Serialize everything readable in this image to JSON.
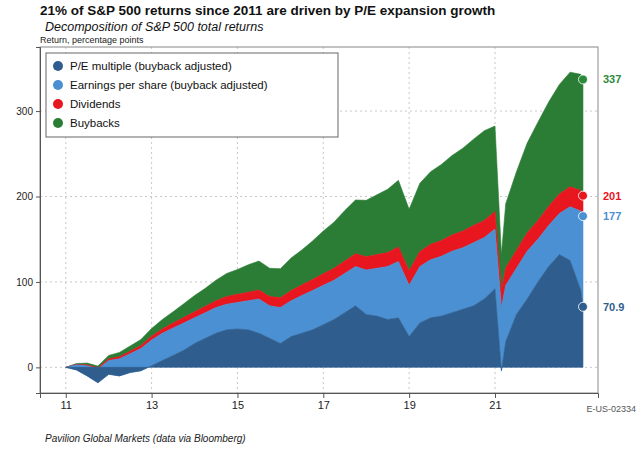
{
  "chart_data": {
    "type": "area",
    "title": "21% of S&P 500 returns since 2011 are driven by P/E expansion growth",
    "subtitle": "Decomposition of S&P 500 total returns",
    "y_label": "Return, percentage points",
    "source": "Pavilion Global Markets (data via Bloomberg)",
    "chart_id": "E-US-02334",
    "stacked": true,
    "grid": true,
    "legend": "top-left",
    "xlim": [
      10.4,
      23.4
    ],
    "xticks": [
      11,
      13,
      15,
      17,
      19,
      21
    ],
    "ylim": [
      -30,
      375
    ],
    "yticks": [
      0,
      100,
      200,
      300
    ],
    "x": [
      11,
      11.25,
      11.5,
      11.75,
      12,
      12.25,
      12.5,
      12.75,
      13,
      13.25,
      13.5,
      13.75,
      14,
      14.25,
      14.5,
      14.75,
      15,
      15.25,
      15.5,
      15.75,
      16,
      16.25,
      16.5,
      16.75,
      17,
      17.25,
      17.5,
      17.75,
      18,
      18.25,
      18.5,
      18.75,
      19,
      19.25,
      19.5,
      19.75,
      20,
      20.25,
      20.5,
      20.75,
      21,
      21.15,
      21.25,
      21.5,
      21.75,
      22,
      22.25,
      22.5,
      22.75,
      23,
      23.05
    ],
    "series": [
      {
        "name": "P/E multiple (buyback adjusted)",
        "color": "#2f5e8e",
        "values": [
          0,
          -3,
          -10,
          -18,
          -8,
          -10,
          -6,
          -4,
          2,
          8,
          14,
          20,
          28,
          34,
          40,
          44,
          45,
          44,
          40,
          34,
          28,
          36,
          40,
          44,
          50,
          56,
          64,
          72,
          62,
          60,
          56,
          58,
          36,
          52,
          58,
          60,
          64,
          68,
          72,
          80,
          92,
          -4,
          30,
          62,
          80,
          100,
          118,
          132,
          125,
          90,
          70.9
        ]
      },
      {
        "name": "Earnings per share (buyback adjusted)",
        "color": "#4a90d2",
        "values": [
          0,
          6,
          12,
          16,
          16,
          20,
          22,
          26,
          30,
          32,
          32,
          32,
          30,
          30,
          30,
          30,
          31,
          34,
          40,
          38,
          42,
          42,
          44,
          46,
          46,
          46,
          46,
          46,
          52,
          56,
          62,
          66,
          60,
          66,
          68,
          70,
          72,
          72,
          74,
          72,
          70,
          74,
          66,
          54,
          56,
          50,
          48,
          48,
          63,
          93,
          106.1
        ]
      },
      {
        "name": "Dividends",
        "color": "#e8161e",
        "values": [
          0,
          0.5,
          1,
          1.5,
          2,
          2.5,
          3,
          3.5,
          4.5,
          5,
          6,
          6.5,
          7,
          7.5,
          8,
          9,
          9.5,
          10,
          10.5,
          11,
          11.5,
          12,
          12.5,
          13,
          13.5,
          14,
          14.5,
          15,
          15.5,
          16,
          16.5,
          17,
          17,
          17.5,
          18,
          18.5,
          19,
          19.5,
          20,
          20,
          20.5,
          20,
          20.5,
          21,
          21.5,
          22,
          22.5,
          23,
          23.5,
          24,
          24
        ]
      },
      {
        "name": "Buybacks",
        "color": "#2b7d36",
        "values": [
          0,
          1,
          2,
          2,
          4,
          5,
          6,
          7,
          9,
          11,
          13,
          16,
          19,
          21,
          24,
          27,
          29,
          32,
          34,
          33,
          34,
          38,
          41,
          45,
          50,
          54,
          59,
          63,
          66,
          70,
          74,
          78,
          72,
          80,
          85,
          89,
          93,
          97,
          101,
          105,
          100,
          42,
          75,
          92,
          105,
          115,
          122,
          128,
          134,
          136,
          136
        ]
      }
    ],
    "annotations": [
      {
        "x": 23.05,
        "y": 337,
        "text": "337",
        "color": "#2b8a3a"
      },
      {
        "x": 23.05,
        "y": 201,
        "text": "201",
        "color": "#e8161e"
      },
      {
        "x": 23.05,
        "y": 177,
        "text": "177",
        "color": "#4a90d2"
      },
      {
        "x": 23.05,
        "y": 70.9,
        "text": "70.9",
        "color": "#2f5e8e"
      }
    ]
  }
}
